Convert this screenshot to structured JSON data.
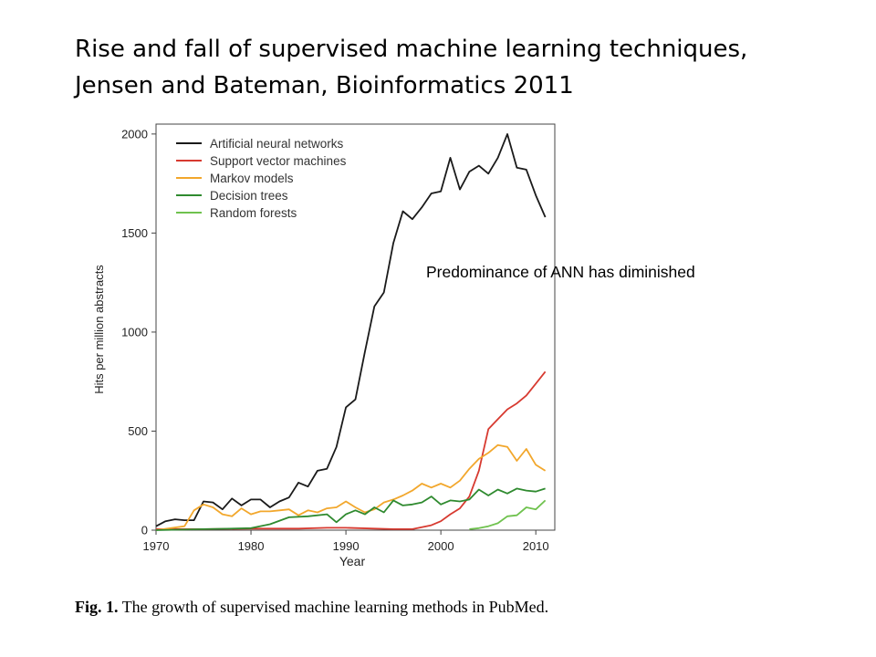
{
  "slide": {
    "title_line1": "Rise and fall of supervised machine learning techniques,",
    "title_line2": "Jensen and Bateman, Bioinformatics 2011",
    "annotation": "Predominance of ANN has diminished"
  },
  "caption": {
    "label": "Fig. 1.",
    "text": "The growth of supervised machine learning methods in PubMed."
  },
  "chart_data": {
    "type": "line",
    "xlabel": "Year",
    "ylabel": "Hits per million abstracts",
    "xlim": [
      1970,
      2012
    ],
    "ylim": [
      0,
      2050
    ],
    "xticks": [
      1970,
      1980,
      1990,
      2000,
      2010
    ],
    "yticks": [
      0,
      500,
      1000,
      1500,
      2000
    ],
    "grid": false,
    "legend_position": "top-left",
    "series": [
      {
        "name": "Artificial neural networks",
        "color": "#1a1a1a",
        "points": [
          [
            1970,
            20
          ],
          [
            1971,
            45
          ],
          [
            1972,
            55
          ],
          [
            1973,
            50
          ],
          [
            1974,
            50
          ],
          [
            1975,
            145
          ],
          [
            1976,
            140
          ],
          [
            1977,
            105
          ],
          [
            1978,
            160
          ],
          [
            1979,
            125
          ],
          [
            1980,
            155
          ],
          [
            1981,
            155
          ],
          [
            1982,
            115
          ],
          [
            1983,
            145
          ],
          [
            1984,
            165
          ],
          [
            1985,
            240
          ],
          [
            1986,
            220
          ],
          [
            1987,
            300
          ],
          [
            1988,
            310
          ],
          [
            1989,
            420
          ],
          [
            1990,
            620
          ],
          [
            1991,
            660
          ],
          [
            1992,
            900
          ],
          [
            1993,
            1130
          ],
          [
            1994,
            1200
          ],
          [
            1995,
            1450
          ],
          [
            1996,
            1610
          ],
          [
            1997,
            1570
          ],
          [
            1998,
            1630
          ],
          [
            1999,
            1700
          ],
          [
            2000,
            1710
          ],
          [
            2001,
            1880
          ],
          [
            2002,
            1720
          ],
          [
            2003,
            1810
          ],
          [
            2004,
            1840
          ],
          [
            2005,
            1800
          ],
          [
            2006,
            1880
          ],
          [
            2007,
            2000
          ],
          [
            2008,
            1830
          ],
          [
            2009,
            1820
          ],
          [
            2010,
            1690
          ],
          [
            2011,
            1580
          ]
        ]
      },
      {
        "name": "Support vector machines",
        "color": "#d73a30",
        "points": [
          [
            1970,
            5
          ],
          [
            1975,
            5
          ],
          [
            1980,
            8
          ],
          [
            1985,
            8
          ],
          [
            1988,
            12
          ],
          [
            1990,
            12
          ],
          [
            1993,
            8
          ],
          [
            1995,
            5
          ],
          [
            1997,
            5
          ],
          [
            1998,
            15
          ],
          [
            1999,
            25
          ],
          [
            2000,
            45
          ],
          [
            2001,
            80
          ],
          [
            2002,
            110
          ],
          [
            2003,
            170
          ],
          [
            2004,
            300
          ],
          [
            2005,
            510
          ],
          [
            2006,
            560
          ],
          [
            2007,
            610
          ],
          [
            2008,
            640
          ],
          [
            2009,
            680
          ],
          [
            2010,
            740
          ],
          [
            2011,
            800
          ]
        ]
      },
      {
        "name": "Markov models",
        "color": "#f2a72c",
        "points": [
          [
            1970,
            0
          ],
          [
            1973,
            20
          ],
          [
            1974,
            100
          ],
          [
            1975,
            130
          ],
          [
            1976,
            115
          ],
          [
            1977,
            80
          ],
          [
            1978,
            70
          ],
          [
            1979,
            110
          ],
          [
            1980,
            80
          ],
          [
            1981,
            95
          ],
          [
            1982,
            95
          ],
          [
            1983,
            100
          ],
          [
            1984,
            105
          ],
          [
            1985,
            75
          ],
          [
            1986,
            100
          ],
          [
            1987,
            90
          ],
          [
            1988,
            110
          ],
          [
            1989,
            115
          ],
          [
            1990,
            145
          ],
          [
            1991,
            115
          ],
          [
            1992,
            90
          ],
          [
            1993,
            105
          ],
          [
            1994,
            140
          ],
          [
            1995,
            155
          ],
          [
            1996,
            175
          ],
          [
            1997,
            200
          ],
          [
            1998,
            235
          ],
          [
            1999,
            215
          ],
          [
            2000,
            235
          ],
          [
            2001,
            215
          ],
          [
            2002,
            250
          ],
          [
            2003,
            310
          ],
          [
            2004,
            360
          ],
          [
            2005,
            390
          ],
          [
            2006,
            430
          ],
          [
            2007,
            420
          ],
          [
            2008,
            350
          ],
          [
            2009,
            410
          ],
          [
            2010,
            330
          ],
          [
            2011,
            300
          ]
        ]
      },
      {
        "name": "Decision trees",
        "color": "#2f8a2f",
        "points": [
          [
            1970,
            0
          ],
          [
            1975,
            5
          ],
          [
            1980,
            10
          ],
          [
            1982,
            30
          ],
          [
            1984,
            65
          ],
          [
            1986,
            70
          ],
          [
            1988,
            80
          ],
          [
            1989,
            40
          ],
          [
            1990,
            80
          ],
          [
            1991,
            100
          ],
          [
            1992,
            80
          ],
          [
            1993,
            115
          ],
          [
            1994,
            90
          ],
          [
            1995,
            150
          ],
          [
            1996,
            125
          ],
          [
            1997,
            130
          ],
          [
            1998,
            140
          ],
          [
            1999,
            170
          ],
          [
            2000,
            130
          ],
          [
            2001,
            150
          ],
          [
            2002,
            145
          ],
          [
            2003,
            155
          ],
          [
            2004,
            205
          ],
          [
            2005,
            175
          ],
          [
            2006,
            205
          ],
          [
            2007,
            185
          ],
          [
            2008,
            210
          ],
          [
            2009,
            200
          ],
          [
            2010,
            195
          ],
          [
            2011,
            210
          ]
        ]
      },
      {
        "name": "Random forests",
        "color": "#6fc24e",
        "points": [
          [
            2003,
            5
          ],
          [
            2004,
            10
          ],
          [
            2005,
            20
          ],
          [
            2006,
            35
          ],
          [
            2007,
            70
          ],
          [
            2008,
            75
          ],
          [
            2009,
            115
          ],
          [
            2010,
            105
          ],
          [
            2011,
            150
          ]
        ]
      }
    ]
  }
}
